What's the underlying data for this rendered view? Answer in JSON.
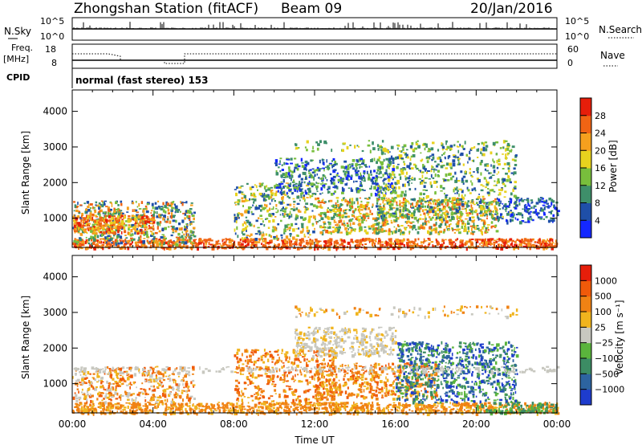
{
  "header": {
    "title": "Zhongshan Station (fitACF)",
    "beam": "Beam 09",
    "date": "20/Jan/2016"
  },
  "params": {
    "nsky_label": "N.Sky",
    "nsky_ticks": [
      "10^5",
      "10^0"
    ],
    "nsearch_label": "N.Search",
    "nsearch_ticks": [
      "10^5",
      "10^0"
    ],
    "freq_label": "Freq.",
    "freq_unit": "[MHz]",
    "freq_ticks": [
      "18",
      "8"
    ],
    "nave_label": "Nave",
    "nave_ticks": [
      "60",
      "0"
    ],
    "cpid_label": "CPID",
    "cpid_text": "normal (fast stereo) 153"
  },
  "chart_data": [
    {
      "type": "heatmap",
      "name": "power",
      "ylabel": "Slant Range [km]",
      "xlabel": "",
      "y_ticks": [
        1000,
        2000,
        3000,
        4000
      ],
      "ylim": [
        180,
        4600
      ],
      "xlim_hours": [
        0,
        24
      ],
      "colorbar": {
        "label": "Power [dB]",
        "ticks": [
          "4",
          "8",
          "12",
          "16",
          "20",
          "24",
          "28"
        ],
        "colors": [
          "#1428ff",
          "#1f4fa8",
          "#3e8f6a",
          "#78be3c",
          "#e8d21e",
          "#f5a01e",
          "#f06414",
          "#e61e0a"
        ]
      }
    },
    {
      "type": "heatmap",
      "name": "velocity",
      "ylabel": "Slant Range [km]",
      "xlabel": "Time UT",
      "x_ticks": [
        "00:00",
        "04:00",
        "08:00",
        "12:00",
        "16:00",
        "20:00",
        "00:00"
      ],
      "y_ticks": [
        1000,
        2000,
        3000,
        4000
      ],
      "ylim": [
        180,
        4600
      ],
      "xlim_hours": [
        0,
        24
      ],
      "colorbar": {
        "label": "Velocity [m s⁻¹]",
        "ticks": [
          "1000",
          "500",
          "100",
          "25",
          "−25",
          "−100",
          "−500",
          "−1000"
        ],
        "colors": [
          "#1e3ccd",
          "#2d64a0",
          "#3c8c64",
          "#5ab43c",
          "#c8c8c0",
          "#f0b41e",
          "#f08214",
          "#f05a0a",
          "#e61e0a"
        ]
      }
    }
  ]
}
